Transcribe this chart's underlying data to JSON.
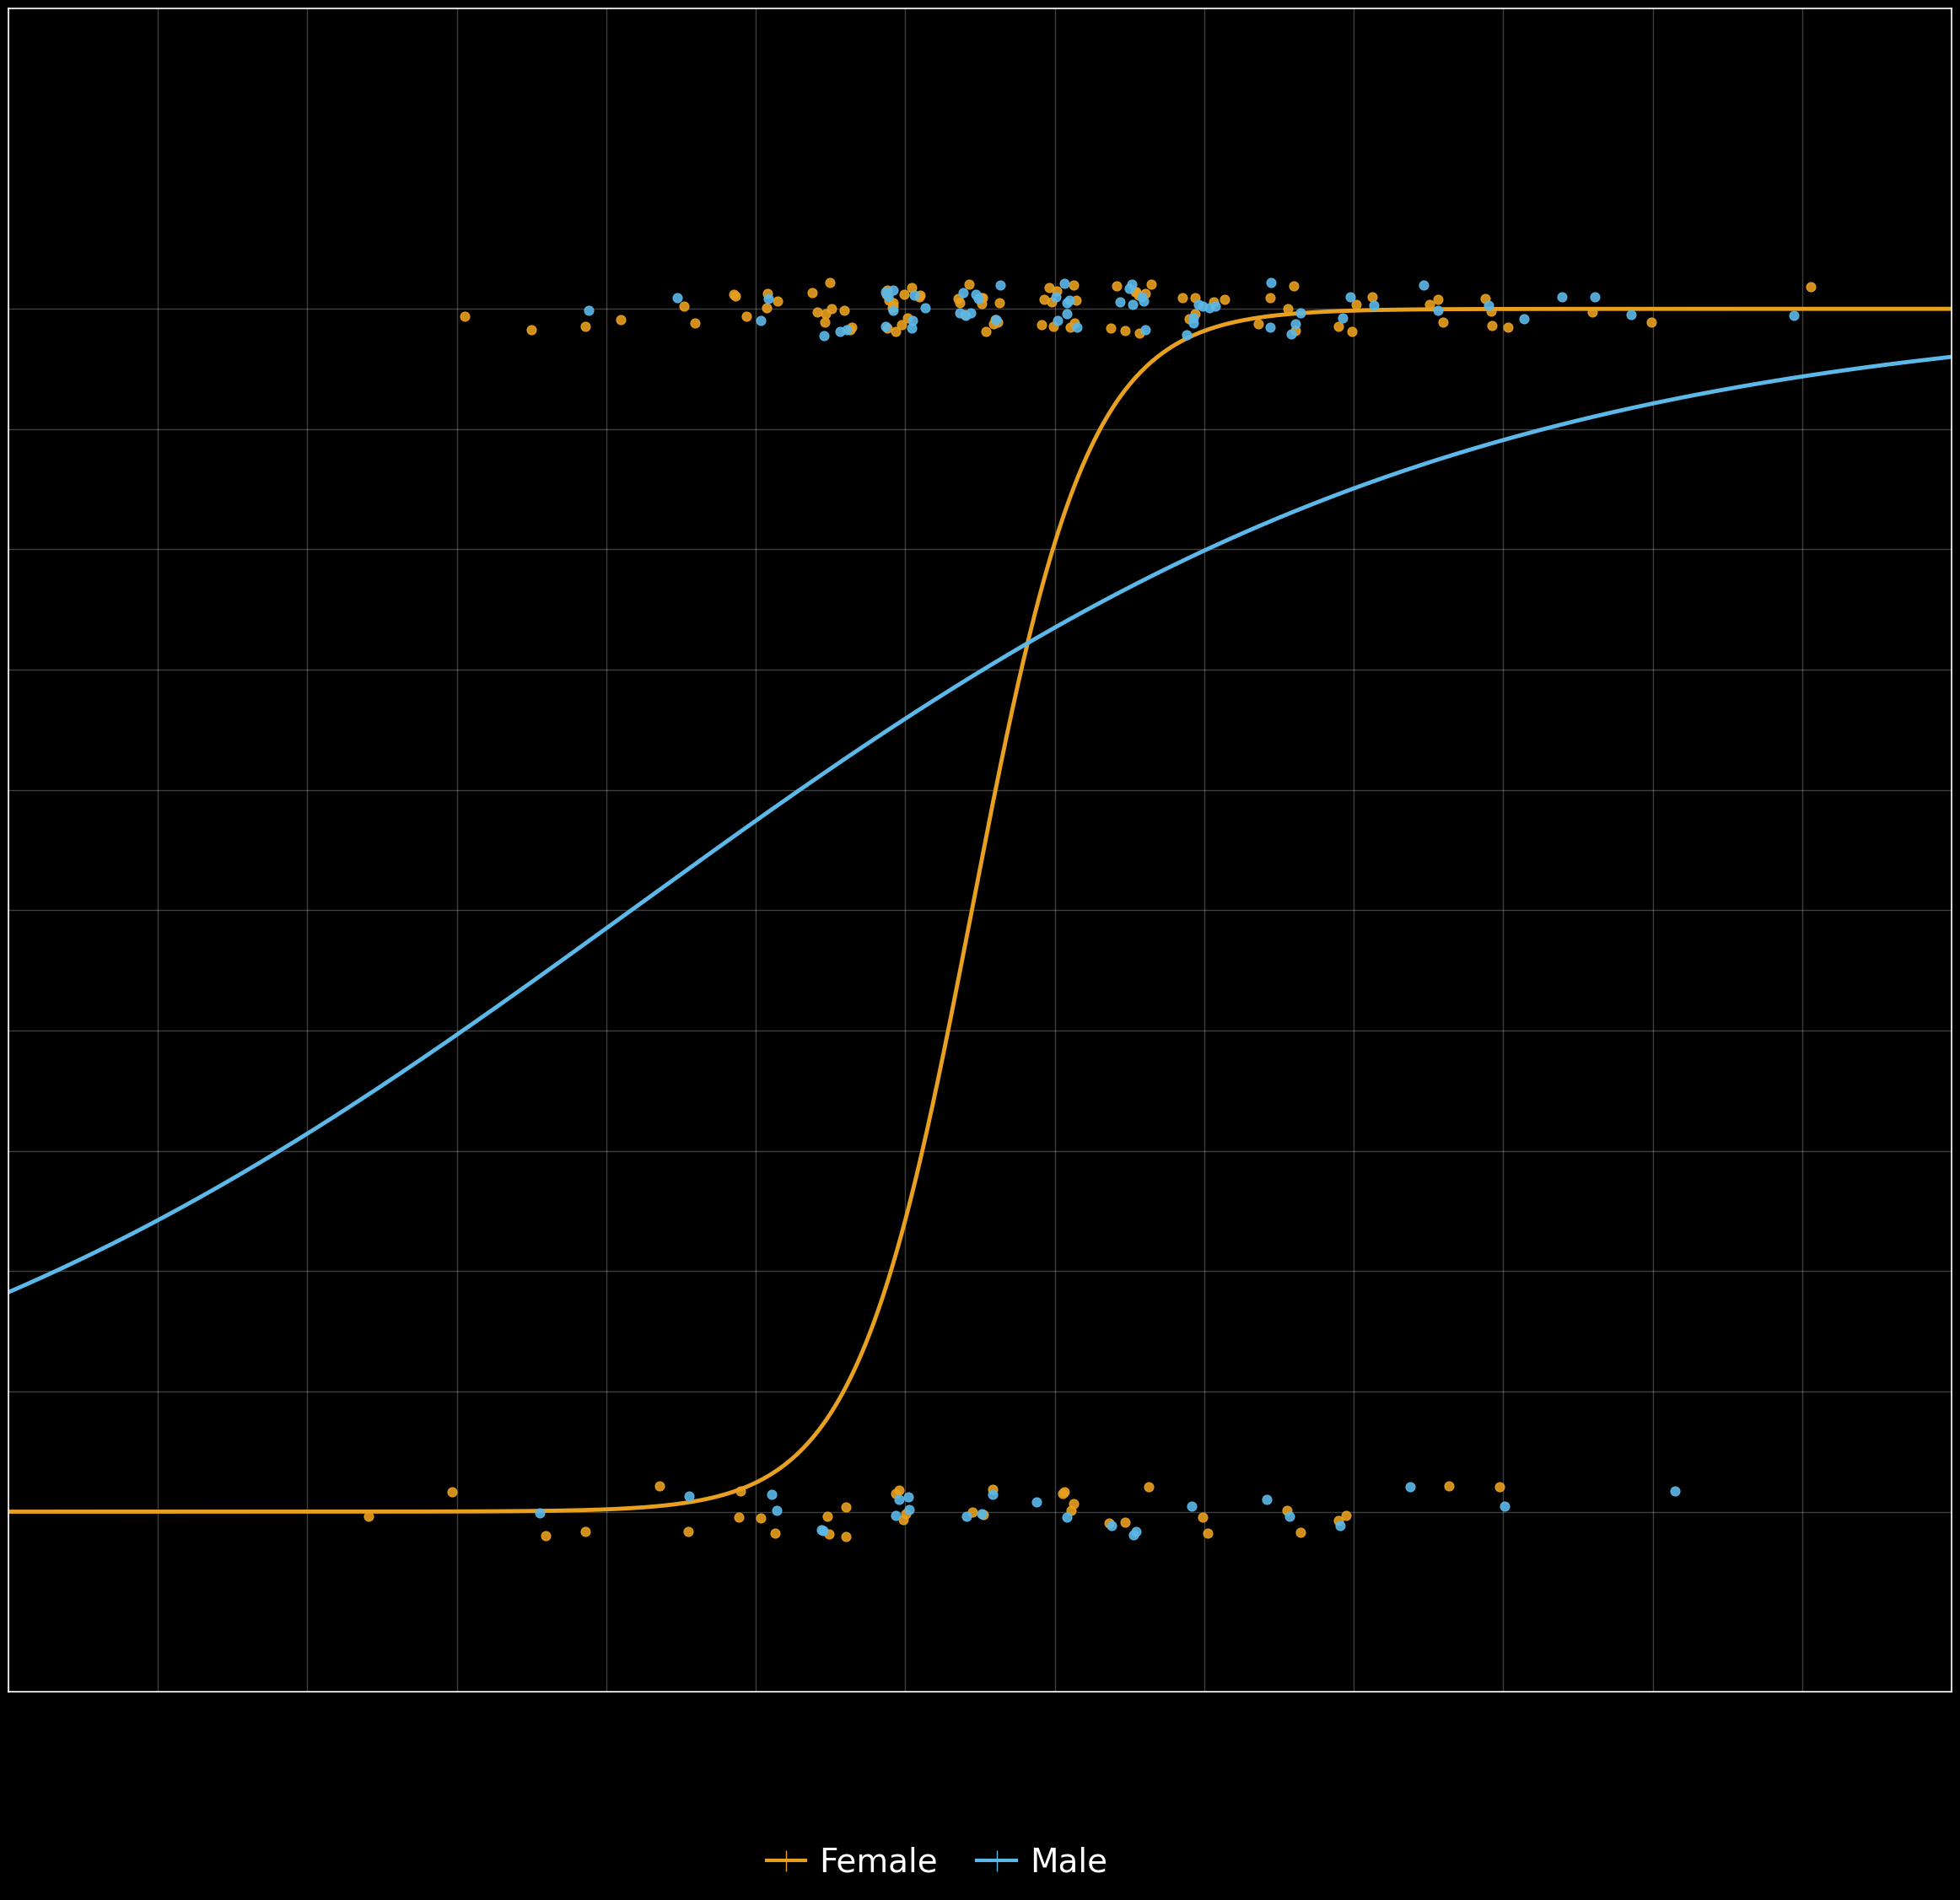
{
  "background_color": "#000000",
  "plot_bg_color": "#000000",
  "grid_color": "#ffffff",
  "grid_alpha": 0.25,
  "grid_linewidth": 1.0,
  "xlim": [
    0,
    26
  ],
  "ylim": [
    -0.15,
    1.25
  ],
  "orange_color": "#E8A020",
  "blue_color": "#5BB8E8",
  "point_size": 60,
  "point_alpha": 0.9,
  "curve_linewidth": 3.5,
  "orange_logistic": {
    "b0": -16.5,
    "b1": 1.28
  },
  "blue_logistic": {
    "b0": -1.5,
    "b1": 0.18
  },
  "legend_labels": [
    "Female",
    "Male"
  ],
  "legend_markersize": 18,
  "tick_color": "#ffffff",
  "tick_labelsize": 0,
  "xticks": [
    0,
    2,
    4,
    6,
    8,
    10,
    12,
    14,
    16,
    18,
    20,
    22,
    24,
    26
  ],
  "yticks": [
    0.0,
    0.1,
    0.2,
    0.3,
    0.4,
    0.5,
    0.6,
    0.7,
    0.8,
    0.9,
    1.0
  ]
}
